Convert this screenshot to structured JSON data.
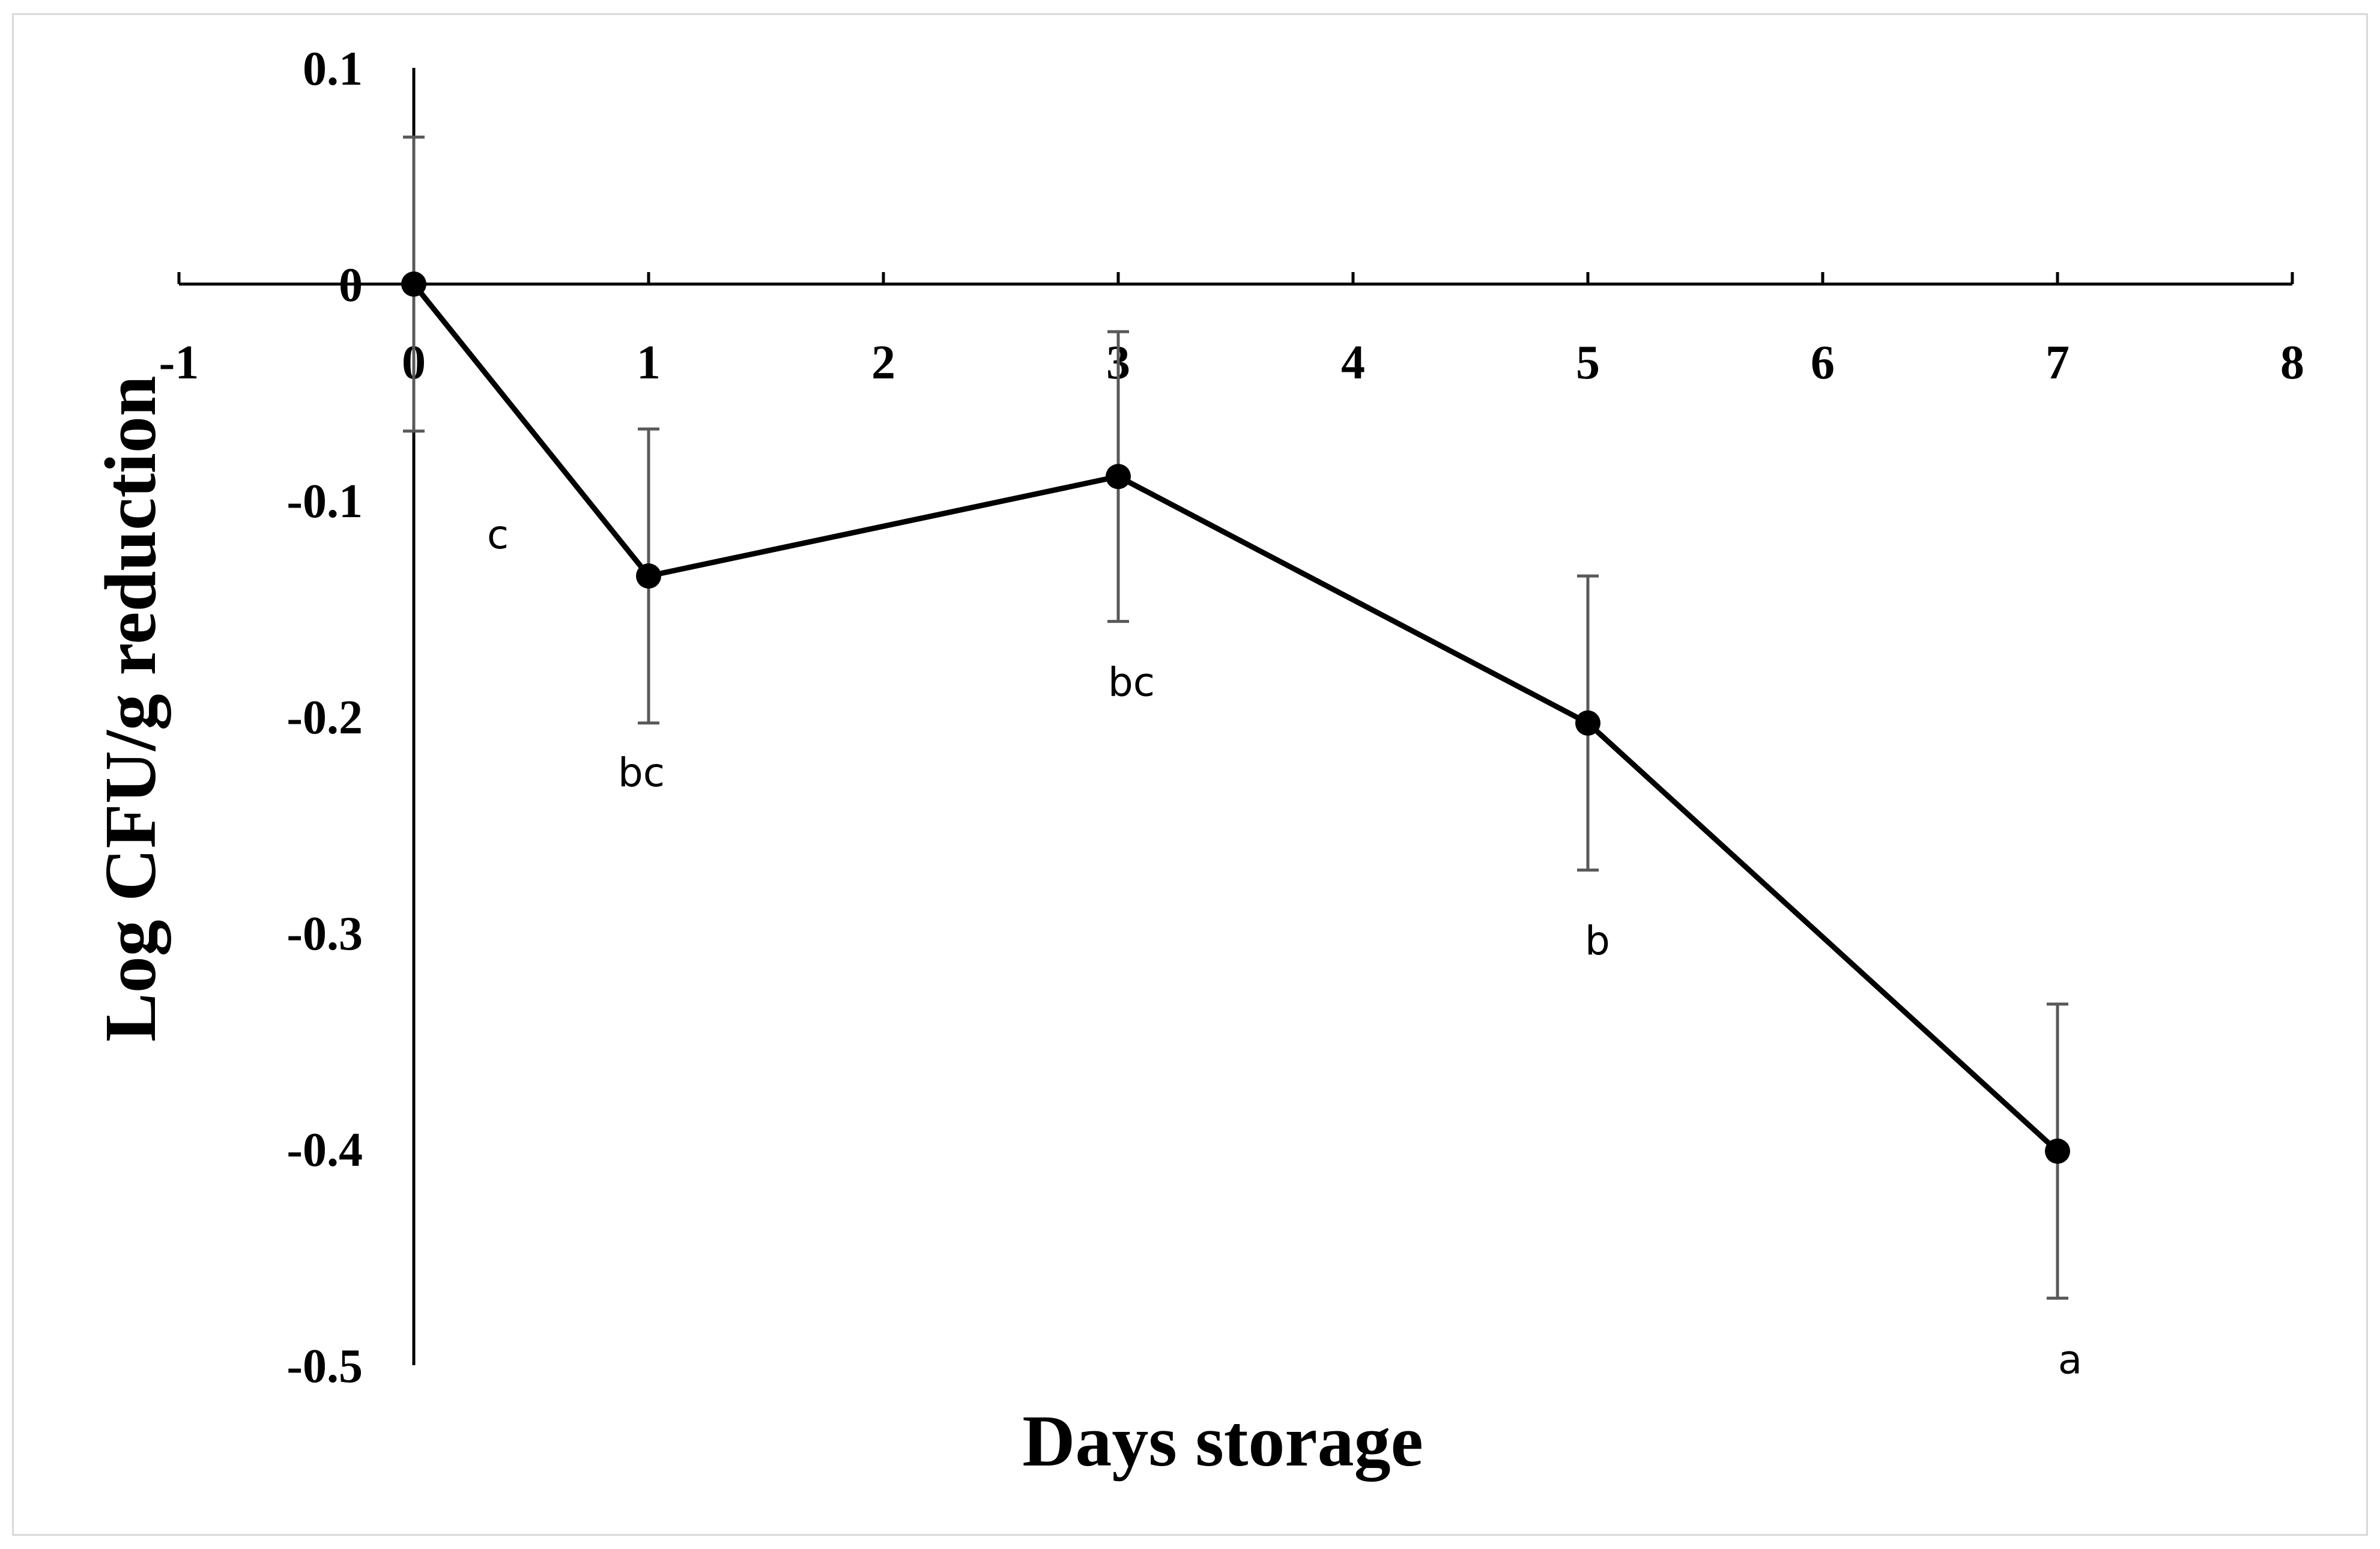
{
  "chart_data": {
    "type": "line",
    "xlabel": "Days storage",
    "ylabel": "Log CFU/g reduction",
    "xlim": [
      -1,
      8
    ],
    "ylim": [
      -0.5,
      0.1
    ],
    "x_ticks": [
      -1,
      0,
      1,
      2,
      3,
      4,
      5,
      6,
      7,
      8
    ],
    "y_ticks": [
      0.1,
      0,
      -0.1,
      -0.2,
      -0.3,
      -0.4,
      -0.5
    ],
    "grid": false,
    "legend": "none",
    "series": [
      {
        "x": [
          0,
          1,
          3,
          5,
          7
        ],
        "y": [
          0,
          -0.135,
          -0.089,
          -0.203,
          -0.401
        ],
        "error": [
          0.068,
          0.068,
          0.067,
          0.068,
          0.068
        ],
        "labels": [
          "c",
          "bc",
          "bc",
          "b",
          "a"
        ]
      }
    ],
    "colors": {
      "line": "#000000",
      "marker": "#000000",
      "error_bar": "#595959",
      "frame": "#d9d9d9"
    }
  }
}
